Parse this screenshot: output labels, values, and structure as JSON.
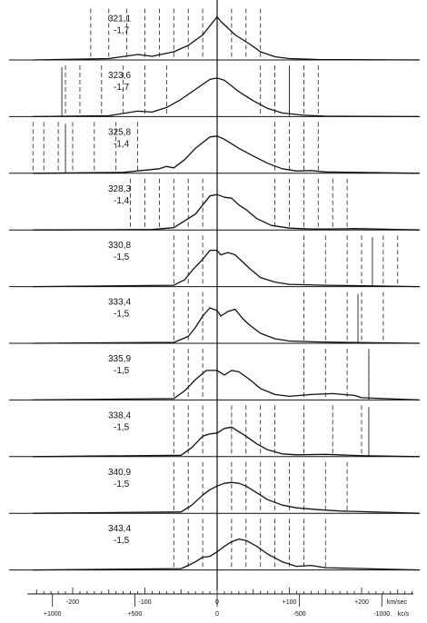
{
  "chart_data": {
    "type": "line",
    "panels": [
      {
        "line1": "321,1",
        "line2": "-1,7"
      },
      {
        "line1": "323,6",
        "line2": "-1,7"
      },
      {
        "line1": "325,8",
        "line2": "-1,4"
      },
      {
        "line1": "328,3",
        "line2": "-1,4"
      },
      {
        "line1": "330,8",
        "line2": "-1,5"
      },
      {
        "line1": "333,4",
        "line2": "-1,5"
      },
      {
        "line1": "335,9",
        "line2": "-1,5"
      },
      {
        "line1": "338,4",
        "line2": "-1,5"
      },
      {
        "line1": "340,9",
        "line2": "-1,5"
      },
      {
        "line1": "343,4",
        "line2": "-1,5"
      }
    ],
    "axis_top": {
      "ticks": [
        -200,
        -100,
        0,
        100,
        200
      ],
      "tick_labels": [
        "-200",
        "-100",
        "0",
        "+100",
        "+200"
      ],
      "unit": "km/sec",
      "xlim": [
        -255,
        280
      ]
    },
    "axis_bottom": {
      "ticks": [
        1000,
        500,
        0,
        -500,
        -1000
      ],
      "tick_labels": [
        "+1000",
        "+500",
        "0",
        "-500",
        "-1000"
      ],
      "unit": "kc/s"
    },
    "series": [
      {
        "x": [
          -255,
          -150,
          -110,
          -90,
          -60,
          -40,
          -20,
          -5,
          0,
          5,
          25,
          45,
          60,
          80,
          100,
          140,
          280
        ],
        "y": [
          0.0,
          0.03,
          0.12,
          0.08,
          0.18,
          0.32,
          0.55,
          0.85,
          0.95,
          0.85,
          0.55,
          0.35,
          0.18,
          0.07,
          0.03,
          0.01,
          0.0
        ]
      },
      {
        "x": [
          -255,
          -150,
          -110,
          -90,
          -70,
          -50,
          -30,
          -10,
          0,
          10,
          30,
          50,
          70,
          90,
          120,
          150,
          280
        ],
        "y": [
          0.0,
          0.02,
          0.12,
          0.1,
          0.2,
          0.38,
          0.6,
          0.82,
          0.85,
          0.8,
          0.55,
          0.35,
          0.18,
          0.08,
          0.03,
          0.01,
          0.0
        ]
      },
      {
        "x": [
          -255,
          -130,
          -80,
          -70,
          -60,
          -45,
          -30,
          -10,
          0,
          10,
          30,
          50,
          70,
          90,
          110,
          130,
          150,
          280
        ],
        "y": [
          0.0,
          0.02,
          0.1,
          0.15,
          0.12,
          0.3,
          0.55,
          0.8,
          0.82,
          0.75,
          0.55,
          0.38,
          0.22,
          0.1,
          0.05,
          0.06,
          0.03,
          0.0
        ]
      },
      {
        "x": [
          -255,
          -90,
          -60,
          -45,
          -30,
          -20,
          -10,
          0,
          10,
          20,
          30,
          40,
          55,
          75,
          100,
          130,
          160,
          190,
          280
        ],
        "y": [
          0.0,
          0.01,
          0.05,
          0.2,
          0.35,
          0.55,
          0.75,
          0.78,
          0.72,
          0.7,
          0.55,
          0.45,
          0.25,
          0.1,
          0.04,
          0.02,
          0.02,
          0.03,
          0.0
        ]
      },
      {
        "x": [
          -255,
          -60,
          -45,
          -35,
          -20,
          -10,
          0,
          5,
          15,
          25,
          35,
          45,
          60,
          80,
          100,
          150,
          200,
          280
        ],
        "y": [
          0.0,
          0.03,
          0.15,
          0.35,
          0.6,
          0.8,
          0.8,
          0.7,
          0.75,
          0.7,
          0.55,
          0.4,
          0.2,
          0.1,
          0.05,
          0.03,
          0.02,
          0.0
        ]
      },
      {
        "x": [
          -255,
          -60,
          -40,
          -30,
          -20,
          -10,
          0,
          5,
          15,
          25,
          35,
          45,
          60,
          80,
          100,
          140,
          180,
          280
        ],
        "y": [
          0.0,
          0.02,
          0.15,
          0.35,
          0.6,
          0.78,
          0.72,
          0.6,
          0.7,
          0.75,
          0.55,
          0.4,
          0.22,
          0.1,
          0.05,
          0.03,
          0.02,
          0.0
        ]
      },
      {
        "x": [
          -255,
          -60,
          -45,
          -30,
          -15,
          0,
          10,
          20,
          30,
          45,
          60,
          80,
          100,
          130,
          160,
          190,
          200,
          280
        ],
        "y": [
          0.0,
          0.03,
          0.2,
          0.45,
          0.65,
          0.65,
          0.55,
          0.65,
          0.62,
          0.45,
          0.25,
          0.12,
          0.08,
          0.12,
          0.14,
          0.1,
          0.05,
          0.0
        ]
      },
      {
        "x": [
          -255,
          -50,
          -35,
          -20,
          -10,
          0,
          10,
          20,
          30,
          40,
          55,
          70,
          90,
          110,
          150,
          200,
          280
        ],
        "y": [
          0.0,
          0.03,
          0.2,
          0.45,
          0.5,
          0.52,
          0.62,
          0.65,
          0.55,
          0.45,
          0.28,
          0.15,
          0.06,
          0.04,
          0.05,
          0.02,
          0.0
        ]
      },
      {
        "x": [
          -255,
          -50,
          -35,
          -20,
          -10,
          0,
          10,
          20,
          30,
          40,
          55,
          70,
          90,
          110,
          140,
          170,
          280
        ],
        "y": [
          0.0,
          0.03,
          0.18,
          0.4,
          0.52,
          0.6,
          0.66,
          0.68,
          0.66,
          0.6,
          0.45,
          0.3,
          0.18,
          0.12,
          0.08,
          0.05,
          0.0
        ]
      },
      {
        "x": [
          -255,
          -50,
          -40,
          -30,
          -20,
          -10,
          0,
          10,
          20,
          30,
          40,
          55,
          70,
          90,
          110,
          130,
          150,
          280
        ],
        "y": [
          0.0,
          0.03,
          0.1,
          0.18,
          0.28,
          0.3,
          0.4,
          0.52,
          0.62,
          0.68,
          0.65,
          0.52,
          0.35,
          0.18,
          0.08,
          0.1,
          0.05,
          0.0
        ]
      }
    ]
  }
}
